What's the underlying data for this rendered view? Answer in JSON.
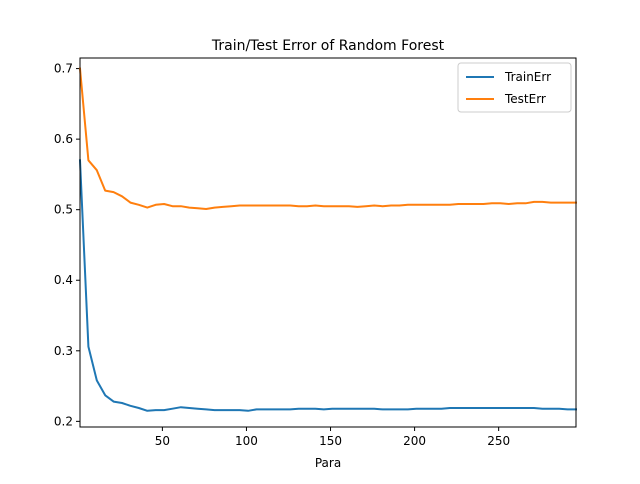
{
  "chart_data": {
    "type": "line",
    "title": "Train/Test Error of Random Forest",
    "xlabel": "Para",
    "ylabel": "",
    "xlim": [
      1,
      296
    ],
    "ylim": [
      0.192,
      0.715
    ],
    "xticks": [
      50,
      100,
      150,
      200,
      250
    ],
    "yticks": [
      0.2,
      0.3,
      0.4,
      0.5,
      0.6,
      0.7
    ],
    "grid": false,
    "legend_position": "top-right",
    "x": [
      1,
      6,
      11,
      16,
      21,
      26,
      31,
      36,
      41,
      46,
      51,
      56,
      61,
      66,
      71,
      76,
      81,
      86,
      91,
      96,
      101,
      106,
      111,
      116,
      121,
      126,
      131,
      136,
      141,
      146,
      151,
      156,
      161,
      166,
      171,
      176,
      181,
      186,
      191,
      196,
      201,
      206,
      211,
      216,
      221,
      226,
      231,
      236,
      241,
      246,
      251,
      256,
      261,
      266,
      271,
      276,
      281,
      286,
      291,
      296
    ],
    "series": [
      {
        "name": "TrainErr",
        "color": "#1f77b4",
        "values": [
          0.57,
          0.306,
          0.258,
          0.237,
          0.228,
          0.226,
          0.222,
          0.219,
          0.215,
          0.216,
          0.216,
          0.218,
          0.22,
          0.219,
          0.218,
          0.217,
          0.216,
          0.216,
          0.216,
          0.216,
          0.215,
          0.217,
          0.217,
          0.217,
          0.217,
          0.217,
          0.218,
          0.218,
          0.218,
          0.217,
          0.218,
          0.218,
          0.218,
          0.218,
          0.218,
          0.218,
          0.217,
          0.217,
          0.217,
          0.217,
          0.218,
          0.218,
          0.218,
          0.218,
          0.219,
          0.219,
          0.219,
          0.219,
          0.219,
          0.219,
          0.219,
          0.219,
          0.219,
          0.219,
          0.219,
          0.218,
          0.218,
          0.218,
          0.217,
          0.217
        ]
      },
      {
        "name": "TestErr",
        "color": "#ff7f0e",
        "values": [
          0.7,
          0.57,
          0.556,
          0.527,
          0.525,
          0.519,
          0.51,
          0.507,
          0.503,
          0.507,
          0.508,
          0.505,
          0.505,
          0.503,
          0.502,
          0.501,
          0.503,
          0.504,
          0.505,
          0.506,
          0.506,
          0.506,
          0.506,
          0.506,
          0.506,
          0.506,
          0.505,
          0.505,
          0.506,
          0.505,
          0.505,
          0.505,
          0.505,
          0.504,
          0.505,
          0.506,
          0.505,
          0.506,
          0.506,
          0.507,
          0.507,
          0.507,
          0.507,
          0.507,
          0.507,
          0.508,
          0.508,
          0.508,
          0.508,
          0.509,
          0.509,
          0.508,
          0.509,
          0.509,
          0.511,
          0.511,
          0.51,
          0.51,
          0.51,
          0.51
        ]
      }
    ]
  }
}
